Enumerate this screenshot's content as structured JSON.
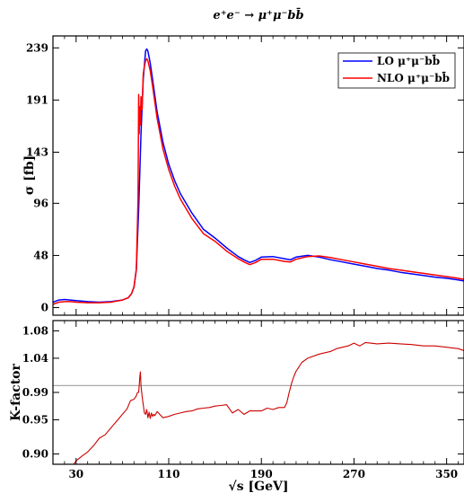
{
  "chart_data": [
    {
      "type": "line",
      "title": "e⁺e⁻ → μ⁺μ⁻bb̄",
      "ylabel": "σ [fb]",
      "xlabel": "",
      "xlim": [
        10,
        365
      ],
      "ylim": [
        -7,
        250
      ],
      "xticks": [
        30,
        110,
        190,
        270,
        350
      ],
      "yticks": [
        0,
        48,
        96,
        143,
        191,
        239
      ],
      "ytick_labels": [
        "0",
        "48",
        "96",
        "143",
        "191",
        "239"
      ],
      "legend": "top-right",
      "grid": false,
      "series": [
        {
          "name": "LO μ⁺μ⁻bb̄",
          "color": "#0000ff",
          "x": [
            10,
            15,
            20,
            25,
            30,
            40,
            50,
            60,
            70,
            75,
            78,
            80,
            82,
            84,
            86,
            88,
            90,
            91,
            92,
            94,
            96,
            100,
            105,
            110,
            115,
            120,
            130,
            140,
            150,
            160,
            170,
            175,
            180,
            185,
            190,
            200,
            210,
            215,
            220,
            230,
            240,
            250,
            260,
            270,
            280,
            290,
            300,
            310,
            320,
            330,
            340,
            350,
            360,
            365
          ],
          "y": [
            5,
            7,
            7.5,
            7,
            6.5,
            5.5,
            5,
            5.5,
            7,
            9,
            13,
            19,
            35,
            90,
            160,
            210,
            236,
            238,
            236,
            225,
            210,
            180,
            152,
            132,
            117,
            105,
            87,
            72,
            64,
            55,
            47,
            44,
            41.5,
            43.5,
            46.5,
            47,
            45,
            44,
            46.5,
            48,
            46.5,
            44,
            42,
            40,
            38,
            36,
            34.5,
            32.5,
            31,
            29.5,
            28,
            27,
            25.5,
            24.5
          ]
        },
        {
          "name": "NLO μ⁺μ⁻bb̄",
          "color": "#ff0000",
          "x": [
            10,
            15,
            20,
            25,
            30,
            40,
            50,
            60,
            70,
            75,
            78,
            80,
            82,
            83.5,
            84,
            84.5,
            85,
            85.5,
            86,
            86.5,
            87,
            88,
            89,
            90,
            91,
            92,
            94,
            96,
            100,
            105,
            110,
            115,
            120,
            130,
            140,
            150,
            160,
            170,
            175,
            180,
            185,
            190,
            200,
            210,
            215,
            220,
            230,
            240,
            250,
            260,
            270,
            280,
            290,
            300,
            310,
            320,
            330,
            340,
            350,
            360,
            365
          ],
          "y": [
            3,
            5,
            5.5,
            5.5,
            5,
            4.5,
            4.5,
            5,
            7,
            9,
            13,
            19,
            35,
            100,
            196,
            160,
            185,
            168,
            194,
            190,
            182,
            215,
            222,
            227,
            229,
            227,
            218,
            204,
            174,
            146,
            127,
            112,
            100,
            82,
            68,
            61,
            52,
            45,
            42,
            39.5,
            41.5,
            44.5,
            44.5,
            42.5,
            42,
            44.5,
            47,
            47.5,
            46,
            44,
            42,
            40,
            38,
            36,
            34.5,
            33,
            31.5,
            30,
            28.5,
            27,
            26
          ]
        }
      ]
    },
    {
      "type": "line",
      "title": "",
      "ylabel": "K-factor",
      "xlabel": "√s [GeV]",
      "xlim": [
        10,
        365
      ],
      "ylim": [
        0.885,
        1.095
      ],
      "xticks": [
        30,
        110,
        190,
        270,
        350
      ],
      "yticks": [
        0.9,
        0.95,
        0.99,
        1.04,
        1.08
      ],
      "ytick_labels": [
        "0.90",
        "0.95",
        "0.99",
        "1.04",
        "1.08"
      ],
      "reference_line": {
        "y": 1.0,
        "color": "#a9a9a9"
      },
      "grid": false,
      "series": [
        {
          "name": "",
          "color": "#cc0000",
          "x": [
            10,
            15,
            20,
            25,
            28,
            30,
            35,
            40,
            45,
            50,
            55,
            60,
            65,
            70,
            74,
            77,
            80,
            82,
            83,
            84,
            84.5,
            85,
            85.5,
            86,
            87,
            88,
            89,
            90,
            91,
            92,
            93,
            94,
            95,
            96,
            97,
            98,
            100,
            105,
            110,
            115,
            120,
            125,
            130,
            135,
            140,
            145,
            150,
            155,
            160,
            165,
            170,
            175,
            180,
            185,
            190,
            195,
            200,
            205,
            210,
            212,
            214,
            216,
            218,
            220,
            225,
            230,
            240,
            250,
            255,
            260,
            265,
            270,
            275,
            280,
            290,
            300,
            310,
            320,
            330,
            340,
            350,
            360,
            365
          ],
          "y": [
            0.862,
            0.868,
            0.875,
            0.88,
            0.885,
            0.89,
            0.897,
            0.903,
            0.912,
            0.923,
            0.928,
            0.938,
            0.948,
            0.958,
            0.966,
            0.978,
            0.98,
            0.985,
            0.99,
            0.99,
            1.0,
            1.013,
            1.02,
            1.0,
            0.985,
            0.972,
            0.96,
            0.958,
            0.965,
            0.953,
            0.961,
            0.952,
            0.96,
            0.955,
            0.958,
            0.956,
            0.962,
            0.953,
            0.955,
            0.958,
            0.96,
            0.962,
            0.963,
            0.966,
            0.967,
            0.968,
            0.97,
            0.971,
            0.972,
            0.96,
            0.965,
            0.958,
            0.963,
            0.963,
            0.963,
            0.967,
            0.965,
            0.968,
            0.968,
            0.975,
            0.99,
            1.003,
            1.013,
            1.021,
            1.034,
            1.04,
            1.046,
            1.05,
            1.054,
            1.056,
            1.058,
            1.062,
            1.058,
            1.063,
            1.061,
            1.062,
            1.061,
            1.06,
            1.058,
            1.058,
            1.056,
            1.054,
            1.051
          ]
        }
      ]
    }
  ]
}
